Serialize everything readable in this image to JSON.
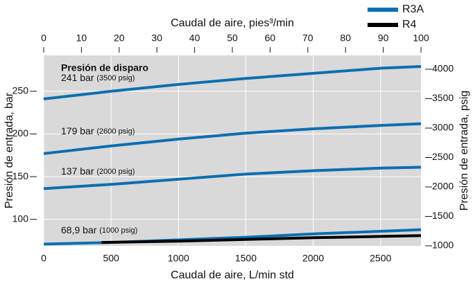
{
  "chart_data": {
    "type": "line",
    "heading": "Presión de disparo",
    "annotations": [
      {
        "text": "241 bar",
        "note": "(3500 psig)"
      },
      {
        "text": "179 bar",
        "note": "(2600 psig)"
      },
      {
        "text": "137 bar",
        "note": "(2000 psig)"
      },
      {
        "text": "68,9 bar",
        "note": "(1000 psig)"
      }
    ],
    "xlabel": "Caudal de aire, L/min std",
    "x2label": "Caudal de aire, pies³/min",
    "ylabel": "Presión de entrada, bar",
    "y2label": "Presión de entrada, psig",
    "xlim": [
      0,
      2800
    ],
    "xticks": [
      0,
      500,
      1000,
      1500,
      2000,
      2500
    ],
    "x2lim": [
      0,
      100
    ],
    "x2ticks": [
      0,
      10,
      20,
      30,
      40,
      50,
      60,
      70,
      80,
      90,
      100
    ],
    "ylim": [
      69,
      292
    ],
    "yticks": [
      100,
      150,
      200,
      250
    ],
    "y2lim": [
      1000,
      4235
    ],
    "y2ticks": [
      1000,
      1500,
      2000,
      2500,
      3000,
      3500,
      4000
    ],
    "grid": true,
    "legend": "top-right",
    "series": [
      {
        "name": "R3A",
        "color": "#0a6fb0",
        "x": [
          0,
          500,
          1000,
          1500,
          2000,
          2500,
          2800
        ],
        "values": [
          241,
          250,
          258,
          265,
          271,
          277,
          279
        ]
      },
      {
        "name": null,
        "color": "#0a6fb0",
        "x": [
          0,
          500,
          1000,
          1500,
          2000,
          2500,
          2800
        ],
        "values": [
          177,
          186,
          194,
          201,
          206,
          210,
          212
        ]
      },
      {
        "name": null,
        "color": "#0a6fb0",
        "x": [
          0,
          500,
          1000,
          1500,
          2000,
          2500,
          2800
        ],
        "values": [
          136,
          141,
          147,
          153,
          157,
          160,
          161
        ]
      },
      {
        "name": null,
        "color": "#0a6fb0",
        "x": [
          0,
          500,
          1000,
          1500,
          2000,
          2500,
          2800
        ],
        "values": [
          71,
          73,
          76,
          79,
          83,
          86,
          88
        ]
      },
      {
        "name": "R4",
        "color": "#000000",
        "x": [
          430,
          1000,
          1500,
          2000,
          2500,
          2800
        ],
        "values": [
          73,
          74.5,
          76.5,
          78.5,
          80,
          81
        ]
      }
    ]
  }
}
